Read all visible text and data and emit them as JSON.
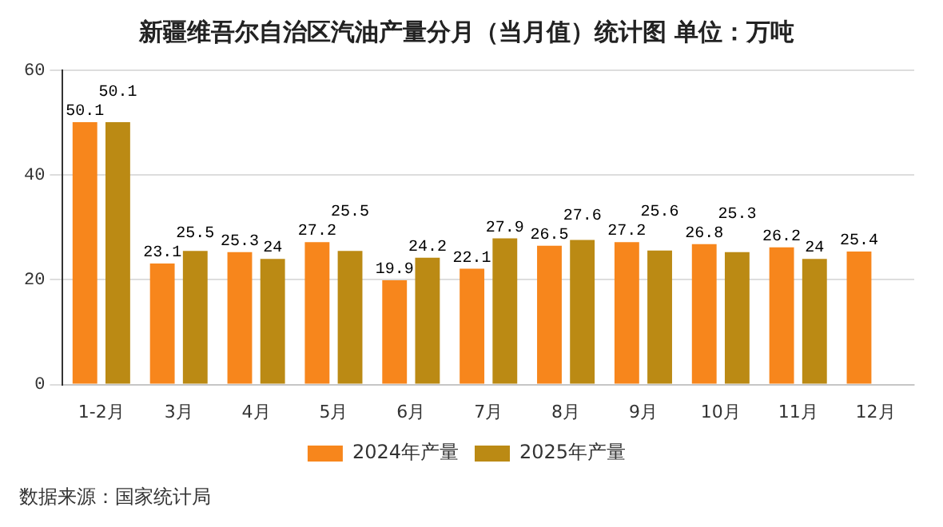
{
  "chart_data": {
    "type": "bar",
    "title": "新疆维吾尔自治区汽油产量分月（当月值）统计图 单位：万吨",
    "categories": [
      "1-2月",
      "3月",
      "4月",
      "5月",
      "6月",
      "7月",
      "8月",
      "9月",
      "10月",
      "11月",
      "12月"
    ],
    "series": [
      {
        "name": "2024年产量",
        "color": "#f7861c",
        "values": [
          50.1,
          23.1,
          25.3,
          27.2,
          19.9,
          22.1,
          26.5,
          27.2,
          26.8,
          26.2,
          25.4
        ]
      },
      {
        "name": "2025年产量",
        "color": "#bb8a14",
        "values": [
          50.1,
          25.5,
          24,
          25.5,
          24.2,
          27.9,
          27.6,
          25.6,
          25.3,
          24,
          null
        ]
      }
    ],
    "ylim": [
      0,
      60
    ],
    "yticks": [
      0,
      20,
      40,
      60
    ],
    "grid": "y",
    "legend": "bottom",
    "data_labels": true,
    "annotations": [
      "数据来源：国家统计局"
    ]
  }
}
